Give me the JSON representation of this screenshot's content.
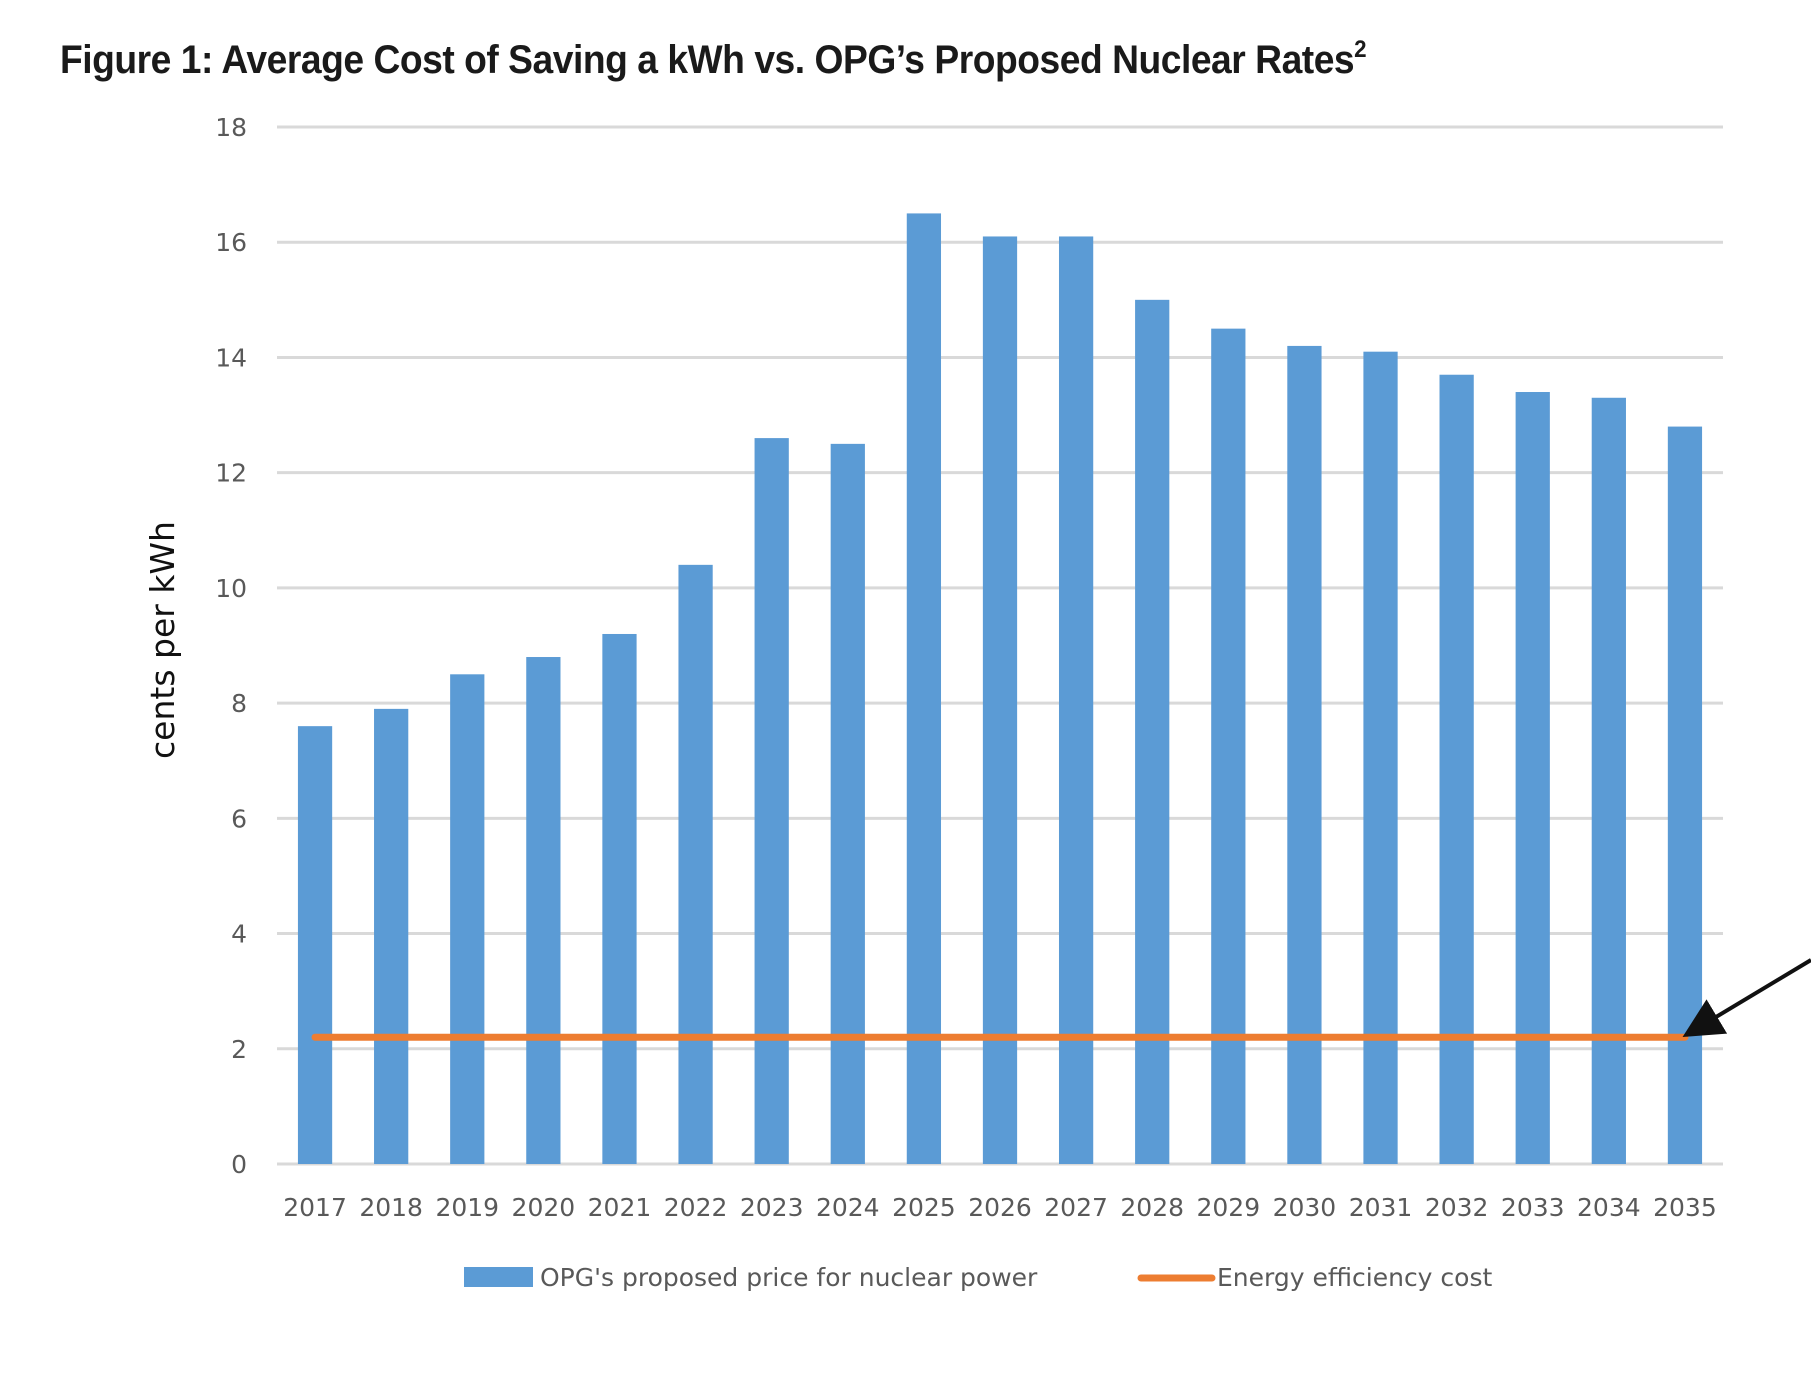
{
  "title": {
    "text": "Figure 1: Average Cost of Saving a kWh vs. OPG’s Proposed Nuclear Rates",
    "superscript": "2"
  },
  "chart_data": {
    "type": "bar",
    "title": "Figure 1: Average Cost of Saving a kWh vs. OPG’s Proposed Nuclear Rates",
    "xlabel": "",
    "ylabel": "cents per kWh",
    "ylim": [
      0,
      18
    ],
    "yticks": [
      0,
      2,
      4,
      6,
      8,
      10,
      12,
      14,
      16,
      18
    ],
    "grid": true,
    "legend_position": "bottom",
    "categories": [
      "2017",
      "2018",
      "2019",
      "2020",
      "2021",
      "2022",
      "2023",
      "2024",
      "2025",
      "2026",
      "2027",
      "2028",
      "2029",
      "2030",
      "2031",
      "2032",
      "2033",
      "2034",
      "2035"
    ],
    "series": [
      {
        "name": "OPG's proposed price for nuclear power",
        "type": "bar",
        "color": "#5B9BD5",
        "values": [
          7.6,
          7.9,
          8.5,
          8.8,
          9.2,
          10.4,
          12.6,
          12.5,
          16.5,
          16.1,
          16.1,
          15.0,
          14.5,
          14.2,
          14.1,
          13.7,
          13.4,
          13.3,
          12.8
        ]
      },
      {
        "name": "Energy efficiency cost",
        "type": "line",
        "color": "#ED7D31",
        "values": [
          2.2,
          2.2,
          2.2,
          2.2,
          2.2,
          2.2,
          2.2,
          2.2,
          2.2,
          2.2,
          2.2,
          2.2,
          2.2,
          2.2,
          2.2,
          2.2,
          2.2,
          2.2,
          2.2
        ]
      }
    ],
    "annotations": [
      {
        "type": "arrow",
        "points_to": "Energy efficiency cost at 2035",
        "color": "#111111"
      }
    ]
  },
  "colors": {
    "grid": "#D9D9D9",
    "tick_text": "#595959",
    "arrow": "#111111"
  }
}
